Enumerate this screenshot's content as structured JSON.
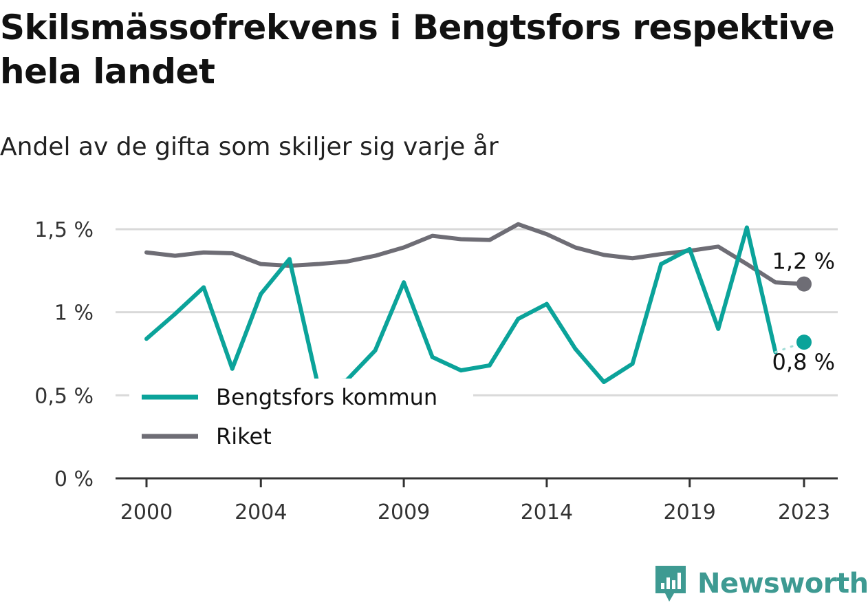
{
  "title": "Skilsmässofrekvens i Bengtsfors respektive hela landet",
  "subtitle": "Andel av de gifta som skiljer sig varje år",
  "brand": "Newsworthy",
  "colors": {
    "bengtsfors": "#0ba39a",
    "riket": "#6e6d75",
    "grid": "#d9d9d9",
    "axis": "#333333",
    "brand": "#3e9a92"
  },
  "chart_data": {
    "type": "line",
    "title": "Skilsmässofrekvens i Bengtsfors respektive hela landet",
    "subtitle": "Andel av de gifta som skiljer sig varje år",
    "x": [
      2000,
      2001,
      2002,
      2003,
      2004,
      2005,
      2006,
      2007,
      2008,
      2009,
      2010,
      2011,
      2012,
      2013,
      2014,
      2015,
      2016,
      2017,
      2018,
      2019,
      2020,
      2021,
      2022,
      2023
    ],
    "x_ticks": [
      2000,
      2004,
      2009,
      2014,
      2019,
      2023
    ],
    "x_tick_labels": [
      "2000",
      "2004",
      "2009",
      "2014",
      "2019",
      "2023"
    ],
    "y_ticks": [
      0,
      0.5,
      1,
      1.5
    ],
    "y_tick_labels": [
      "0 %",
      "0,5 %",
      "1 %",
      "1,5 %"
    ],
    "ylim": [
      0,
      1.5
    ],
    "grid": true,
    "legend_position": "bottom-left",
    "series": [
      {
        "name": "Bengtsfors kommun",
        "color": "#0ba39a",
        "values": [
          0.84,
          0.99,
          1.15,
          0.66,
          1.11,
          1.32,
          0.56,
          0.59,
          0.77,
          1.18,
          0.73,
          0.65,
          0.68,
          0.96,
          1.05,
          0.78,
          0.58,
          0.69,
          1.29,
          1.38,
          0.9,
          1.51,
          0.76,
          0.82
        ],
        "uncertain_years": [
          2006,
          2007,
          2022
        ],
        "end_label": "0,8 %"
      },
      {
        "name": "Riket",
        "color": "#6e6d75",
        "values": [
          1.36,
          1.34,
          1.36,
          1.355,
          1.29,
          1.28,
          1.29,
          1.305,
          1.34,
          1.39,
          1.46,
          1.44,
          1.435,
          1.53,
          1.47,
          1.39,
          1.345,
          1.325,
          1.35,
          1.37,
          1.395,
          1.29,
          1.18,
          1.17
        ],
        "end_label": "1,2 %"
      }
    ]
  }
}
